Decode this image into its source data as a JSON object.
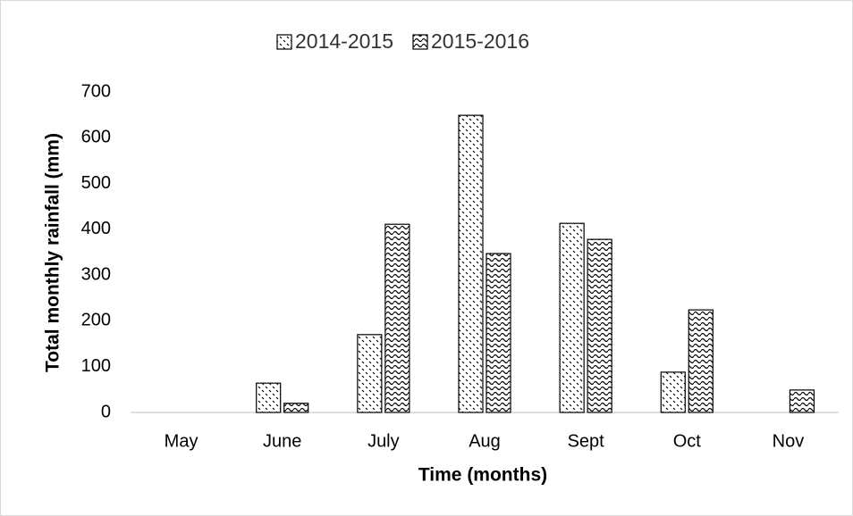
{
  "chart_data": {
    "type": "bar",
    "x_label": "Time (months)",
    "y_label": "Total monthly rainfall (mm)",
    "categories": [
      "May",
      "June",
      "July",
      "Aug",
      "Sept",
      "Oct",
      "Nov"
    ],
    "series": [
      {
        "name": "2014-2015",
        "color": "#000000",
        "pattern": "dots",
        "values": [
          0,
          64,
          170,
          649,
          413,
          88,
          0
        ]
      },
      {
        "name": "2015-2016",
        "color": "#000000",
        "pattern": "waves",
        "values": [
          0,
          20,
          411,
          347,
          378,
          224,
          49
        ]
      }
    ],
    "ylim": [
      0,
      700
    ],
    "yticks": [
      0,
      100,
      200,
      300,
      400,
      500,
      600,
      700
    ],
    "grid": false,
    "legend": "top"
  }
}
